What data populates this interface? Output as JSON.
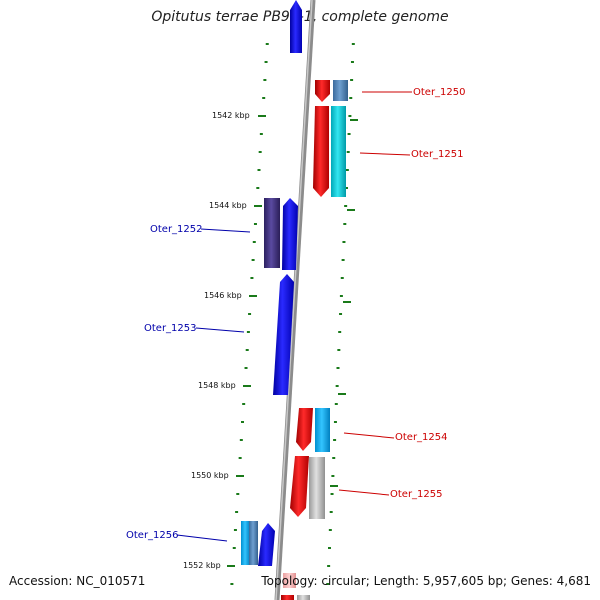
{
  "title": "Opitutus terrae PB90-1, complete genome",
  "footer": {
    "accession": "Accession: NC_010571",
    "stats": "Topology: circular; Length: 5,957,605 bp; Genes: 4,681"
  },
  "ticks": [
    {
      "label": "1542 kbp"
    },
    {
      "label": "1544 kbp"
    },
    {
      "label": "1546 kbp"
    },
    {
      "label": "1548 kbp"
    },
    {
      "label": "1550 kbp"
    },
    {
      "label": "1552 kbp"
    }
  ],
  "genes": [
    {
      "name": "Oter_1250",
      "strand": "forward",
      "color": "#cc0000"
    },
    {
      "name": "Oter_1251",
      "strand": "forward",
      "color": "#cc0000"
    },
    {
      "name": "Oter_1252",
      "strand": "reverse",
      "color": "#0000aa"
    },
    {
      "name": "Oter_1253",
      "strand": "reverse",
      "color": "#0000aa"
    },
    {
      "name": "Oter_1254",
      "strand": "forward",
      "color": "#cc0000"
    },
    {
      "name": "Oter_1255",
      "strand": "forward",
      "color": "#cc0000"
    },
    {
      "name": "Oter_1256",
      "strand": "reverse",
      "color": "#0000aa"
    }
  ],
  "colors": {
    "backbone": "#8c8c8c",
    "tick": "#1a7a1a",
    "forward_cds": "#ff1a1a",
    "reverse_cds": "#1a1aff"
  }
}
